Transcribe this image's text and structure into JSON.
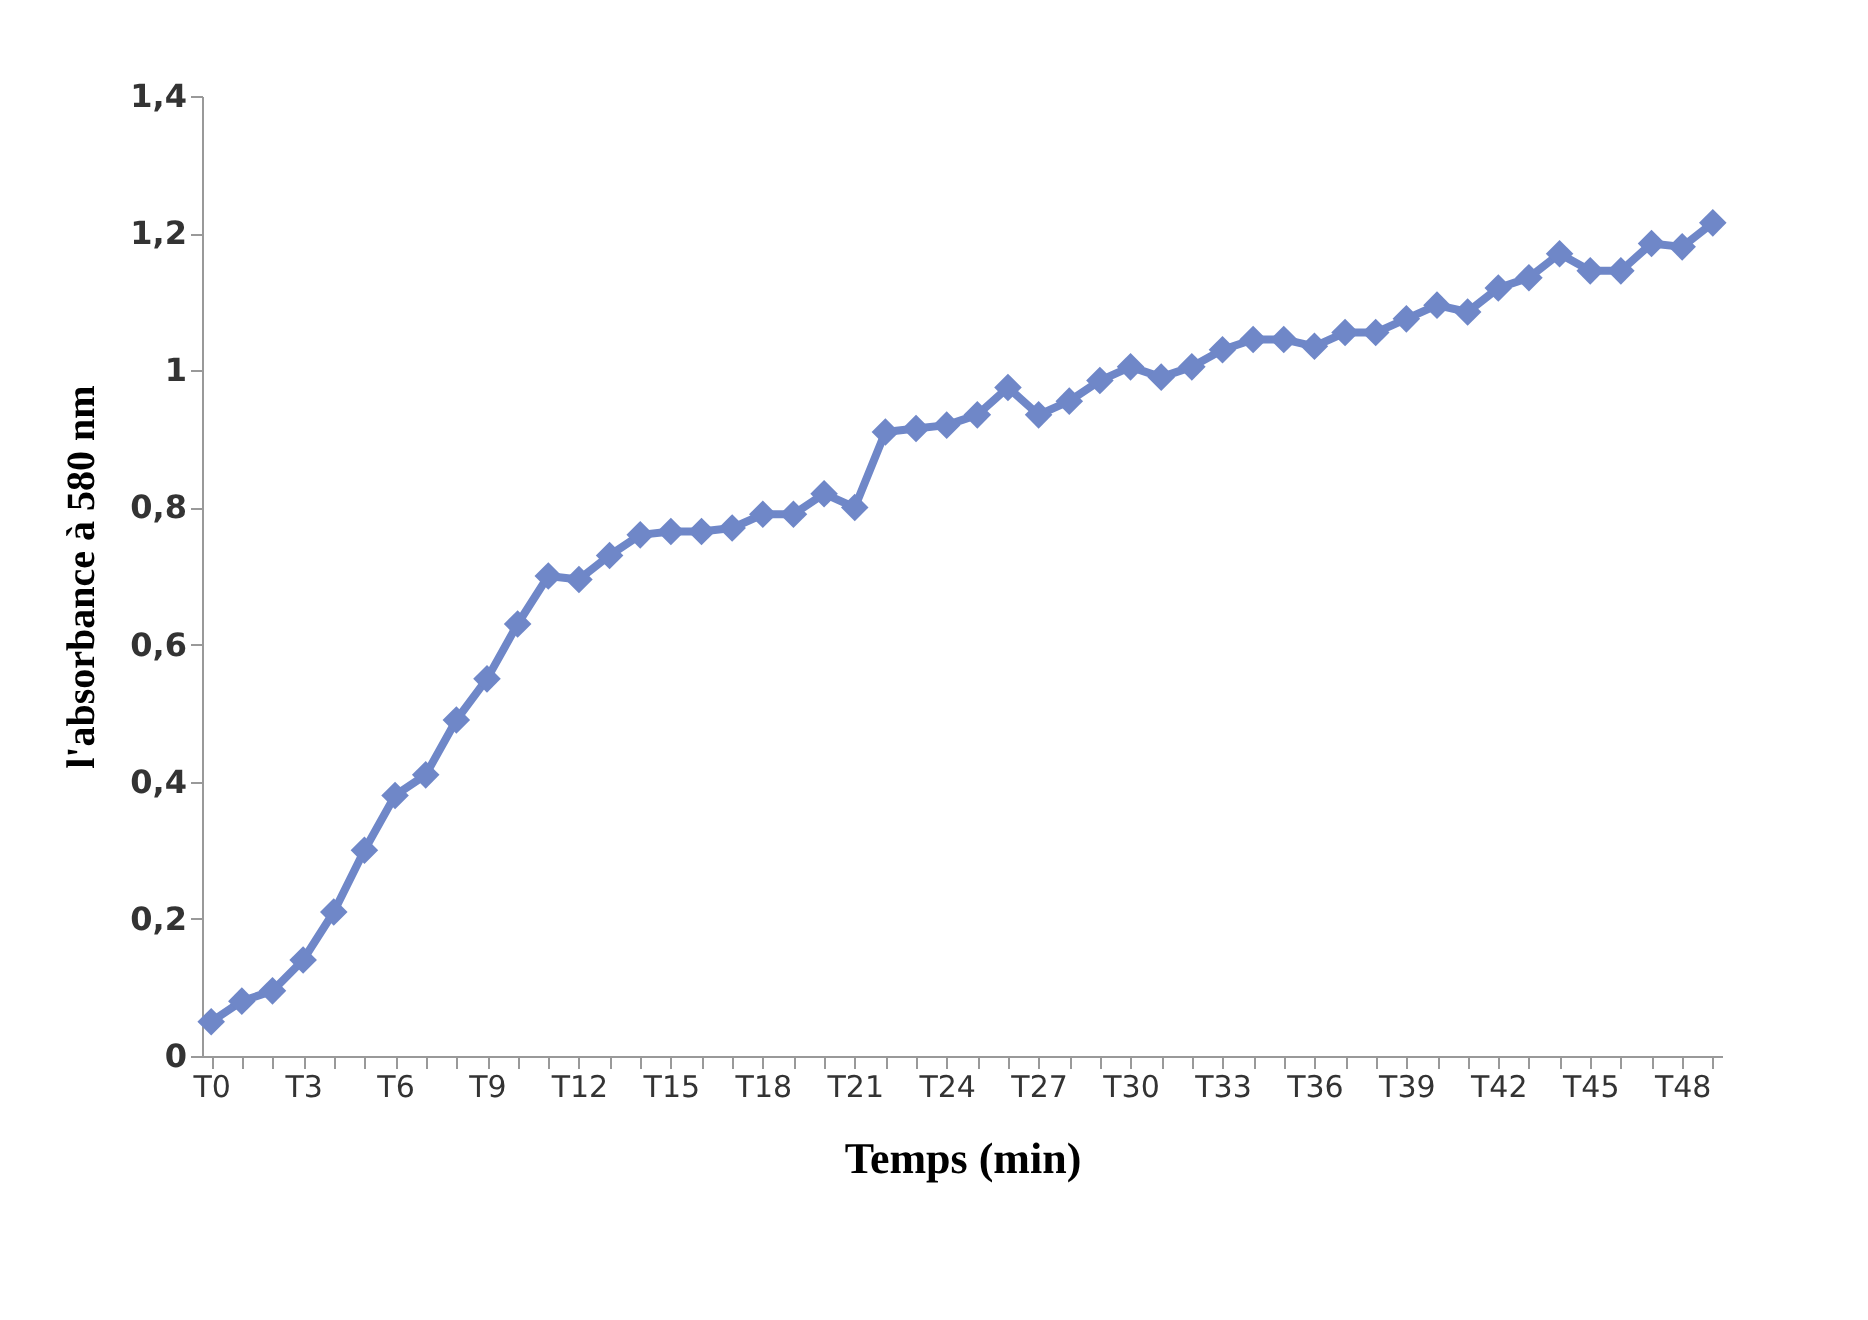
{
  "chart_data": {
    "type": "line",
    "xlabel": "Temps (min)",
    "ylabel": "l'absorbance à 580  nm",
    "categories": [
      "T0",
      null,
      null,
      "T3",
      null,
      null,
      "T6",
      null,
      null,
      "T9",
      null,
      null,
      "T12",
      null,
      null,
      "T15",
      null,
      null,
      "T18",
      null,
      null,
      "T21",
      null,
      null,
      "T24",
      null,
      null,
      "T27",
      null,
      null,
      "T30",
      null,
      null,
      "T33",
      null,
      null,
      "T36",
      null,
      null,
      "T39",
      null,
      null,
      "T42",
      null,
      null,
      "T45",
      null,
      null,
      "T48",
      null
    ],
    "series": [
      {
        "color": "#6f87c8",
        "values": [
          0.05,
          0.08,
          0.095,
          0.14,
          0.21,
          0.3,
          0.38,
          0.41,
          0.49,
          0.55,
          0.63,
          0.7,
          0.695,
          0.73,
          0.76,
          0.765,
          0.765,
          0.77,
          0.79,
          0.79,
          0.82,
          0.8,
          0.91,
          0.915,
          0.92,
          0.935,
          0.975,
          0.935,
          0.955,
          0.985,
          1.005,
          0.99,
          1.005,
          1.03,
          1.045,
          1.045,
          1.035,
          1.055,
          1.055,
          1.075,
          1.095,
          1.085,
          1.12,
          1.135,
          1.17,
          1.145,
          1.145,
          1.185,
          1.18,
          1.215
        ]
      }
    ],
    "ylim": [
      0,
      1.4
    ],
    "yticks": [
      0,
      {
        "value": 0.2,
        "label": "0,2"
      },
      {
        "value": 0.4,
        "label": "0,4"
      },
      {
        "value": 0.6,
        "label": "0,6"
      },
      {
        "value": 0.8,
        "label": "0,8"
      },
      1,
      {
        "value": 1.2,
        "label": "1,2"
      },
      {
        "value": 1.4,
        "label": "1,4"
      }
    ],
    "grid": false,
    "legend": false,
    "marker": "diamond",
    "line_style": "solid"
  }
}
